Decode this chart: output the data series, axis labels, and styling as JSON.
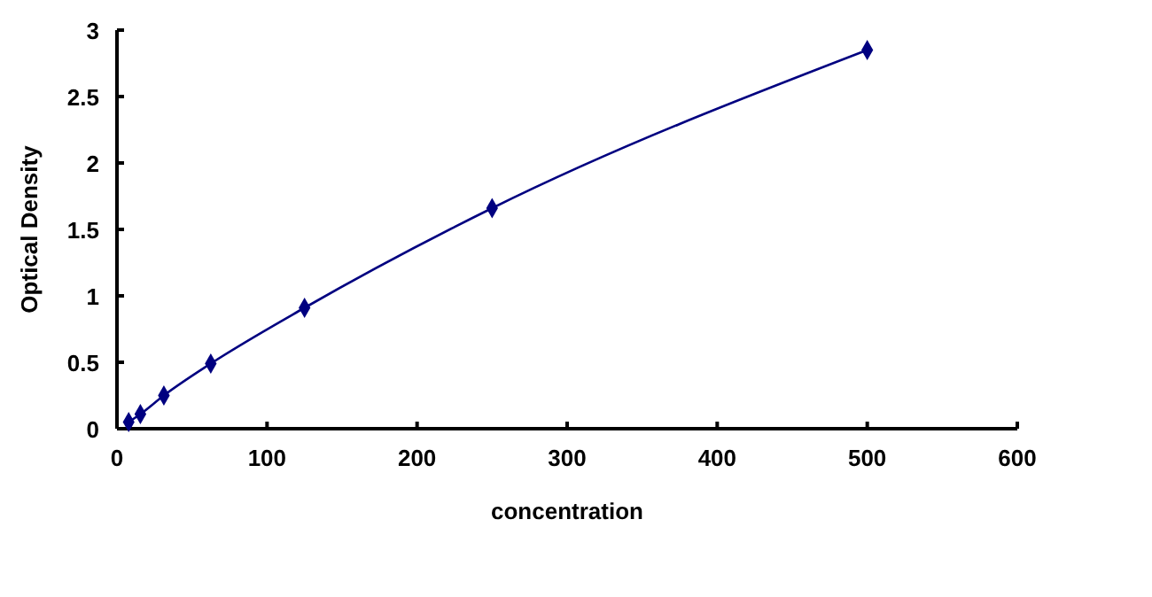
{
  "chart_data": {
    "type": "line",
    "xlabel": "concentration",
    "ylabel": "Optical Density",
    "xlim": [
      0,
      600
    ],
    "xticks": [
      0,
      100,
      200,
      300,
      400,
      500,
      600
    ],
    "ylim": [
      0,
      3
    ],
    "yticks": [
      0,
      0.5,
      1,
      1.5,
      2,
      2.5,
      3
    ],
    "grid": false,
    "marker": "diamond",
    "line_style": "solid",
    "series": [
      {
        "color": "#000080",
        "x": [
          7.8,
          15.6,
          31.25,
          62.5,
          125,
          250,
          500
        ],
        "values": [
          0.05,
          0.11,
          0.25,
          0.49,
          0.91,
          1.66,
          2.85
        ]
      }
    ]
  }
}
